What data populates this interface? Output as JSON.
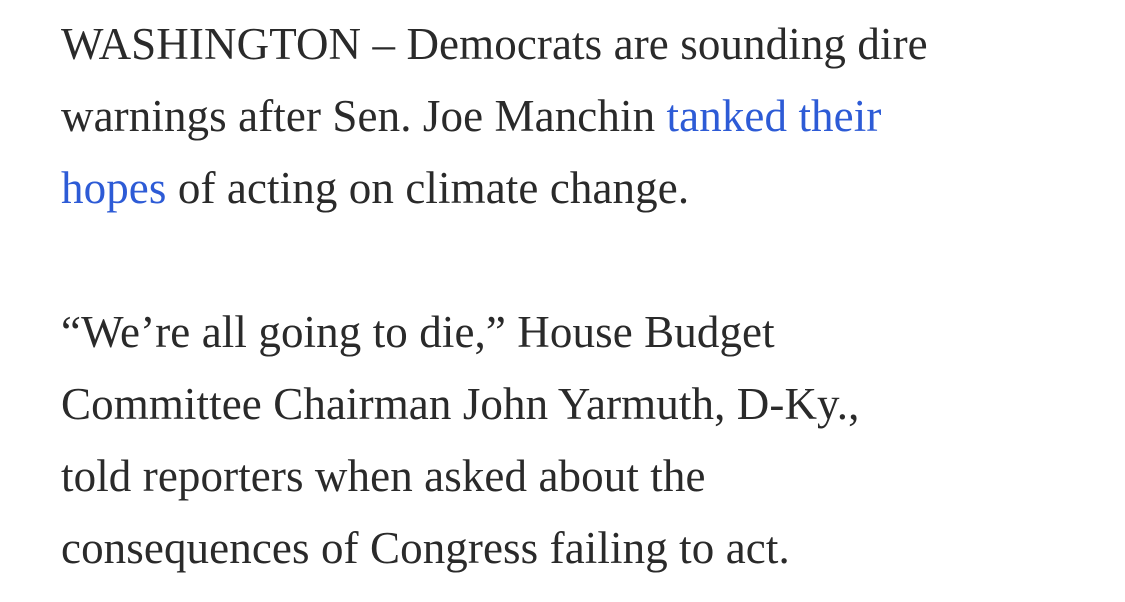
{
  "article": {
    "paragraph1": {
      "line1": "WASHINGTON – Democrats are sounding dire",
      "line2_text": "warnings after Sen. Joe Manchin ",
      "link_part1": "tanked their",
      "link_part2": "hopes",
      "line3_text": " of acting on climate change."
    },
    "paragraph2": {
      "line1": "“We’re all going to die,” House Budget",
      "line2": "Committee Chairman John Yarmuth, D-Ky.,",
      "line3": "told reporters when asked about the",
      "line4": "consequences of Congress failing to act."
    }
  },
  "colors": {
    "text": "#2a2a2a",
    "link": "#2d5bd6",
    "background": "#ffffff"
  }
}
